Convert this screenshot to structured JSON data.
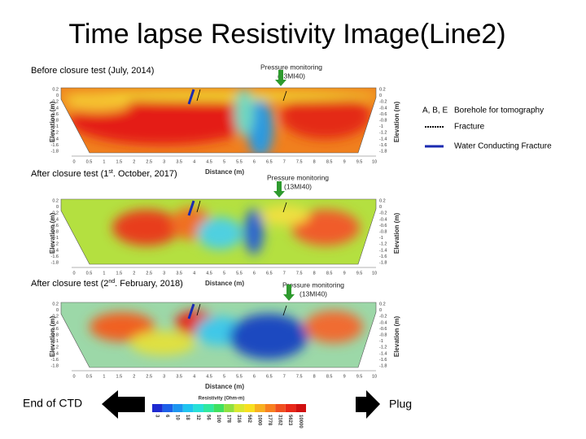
{
  "title": "Time lapse Resistivity Image(Line2)",
  "panels": [
    {
      "label": [
        "Before closure test (July, 2014)"
      ],
      "monitor": [
        "Pressure monitoring",
        "(13MI40)"
      ]
    },
    {
      "label": [
        "After closure test (1",
        "st",
        ". October, 2017)"
      ],
      "monitor": [
        "Pressure monitoring",
        "(13MI40)"
      ]
    },
    {
      "label": [
        "After closure test (2",
        "nd",
        ". February, 2018)"
      ],
      "monitor": [
        "Pressure monitoring",
        "(13MI40)"
      ]
    }
  ],
  "axis": {
    "x_label": "Distance (m)",
    "y_label": "Elevation (m)",
    "x_ticks": [
      "0",
      "0.5",
      "1",
      "1.5",
      "2",
      "2.5",
      "3",
      "3.5",
      "4",
      "4.5",
      "5",
      "5.5",
      "6",
      "6.5",
      "7",
      "7.5",
      "8",
      "8.5",
      "9",
      "9.5",
      "10"
    ],
    "y_ticks": [
      "0.2",
      "0",
      "-0.2",
      "-0.4",
      "-0.6",
      "-0.8",
      "-1",
      "-1.2",
      "-1.4",
      "-1.6",
      "-1.8"
    ]
  },
  "legend": [
    {
      "key": "A, B, E",
      "text": "Borehole for tomography"
    },
    {
      "text": "Fracture"
    },
    {
      "text": "Water Conducting Fracture"
    }
  ],
  "colorbar": {
    "title": "Resistivity (Ohm-m)",
    "labels": [
      "3",
      "6",
      "10",
      "18",
      "32",
      "56",
      "100",
      "178",
      "316",
      "562",
      "1000",
      "1778",
      "3162",
      "5623",
      "10000"
    ]
  },
  "left_arrow": "End of CTD",
  "right_arrow": "Plug"
}
